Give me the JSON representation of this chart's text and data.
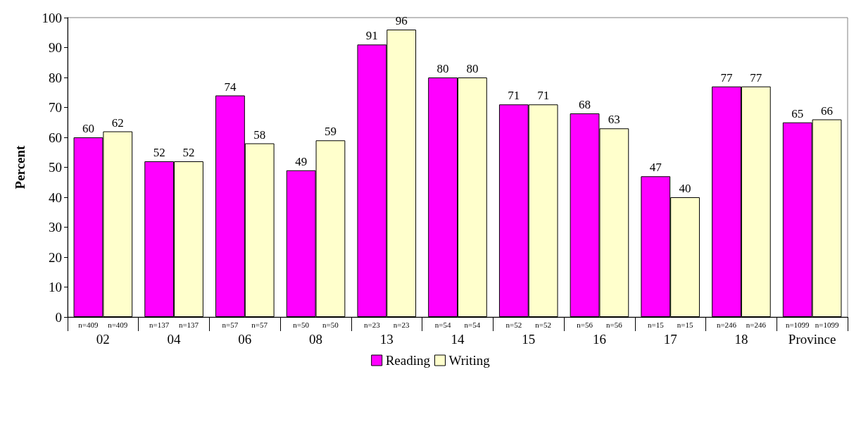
{
  "chart_data": {
    "type": "bar",
    "ylabel": "Percent",
    "categories": [
      "02",
      "04",
      "06",
      "08",
      "13",
      "14",
      "15",
      "16",
      "17",
      "18",
      "Province"
    ],
    "series": [
      {
        "name": "Reading",
        "color": "#ff00ff",
        "values": [
          60,
          52,
          74,
          49,
          91,
          80,
          71,
          68,
          47,
          77,
          65
        ]
      },
      {
        "name": "Writing",
        "color": "#ffffcc",
        "values": [
          62,
          52,
          58,
          59,
          96,
          80,
          71,
          63,
          40,
          77,
          66
        ]
      }
    ],
    "ylim": [
      0,
      100
    ],
    "yticks": [
      0,
      10,
      20,
      30,
      40,
      50,
      60,
      70,
      80,
      90,
      100
    ],
    "data_labels": true,
    "grid": false,
    "legend": "bottom",
    "annotations": [
      "n=409",
      "n=409",
      "n=137",
      "n=137",
      "n=57",
      "n=57",
      "n=50",
      "n=50",
      "n=23",
      "n=23",
      "n=54",
      "n=54",
      "n=52",
      "n=52",
      "n=56",
      "n=56",
      "n=15",
      "n=15",
      "n=246",
      "n=246",
      "n=1099",
      "n=1099"
    ]
  }
}
